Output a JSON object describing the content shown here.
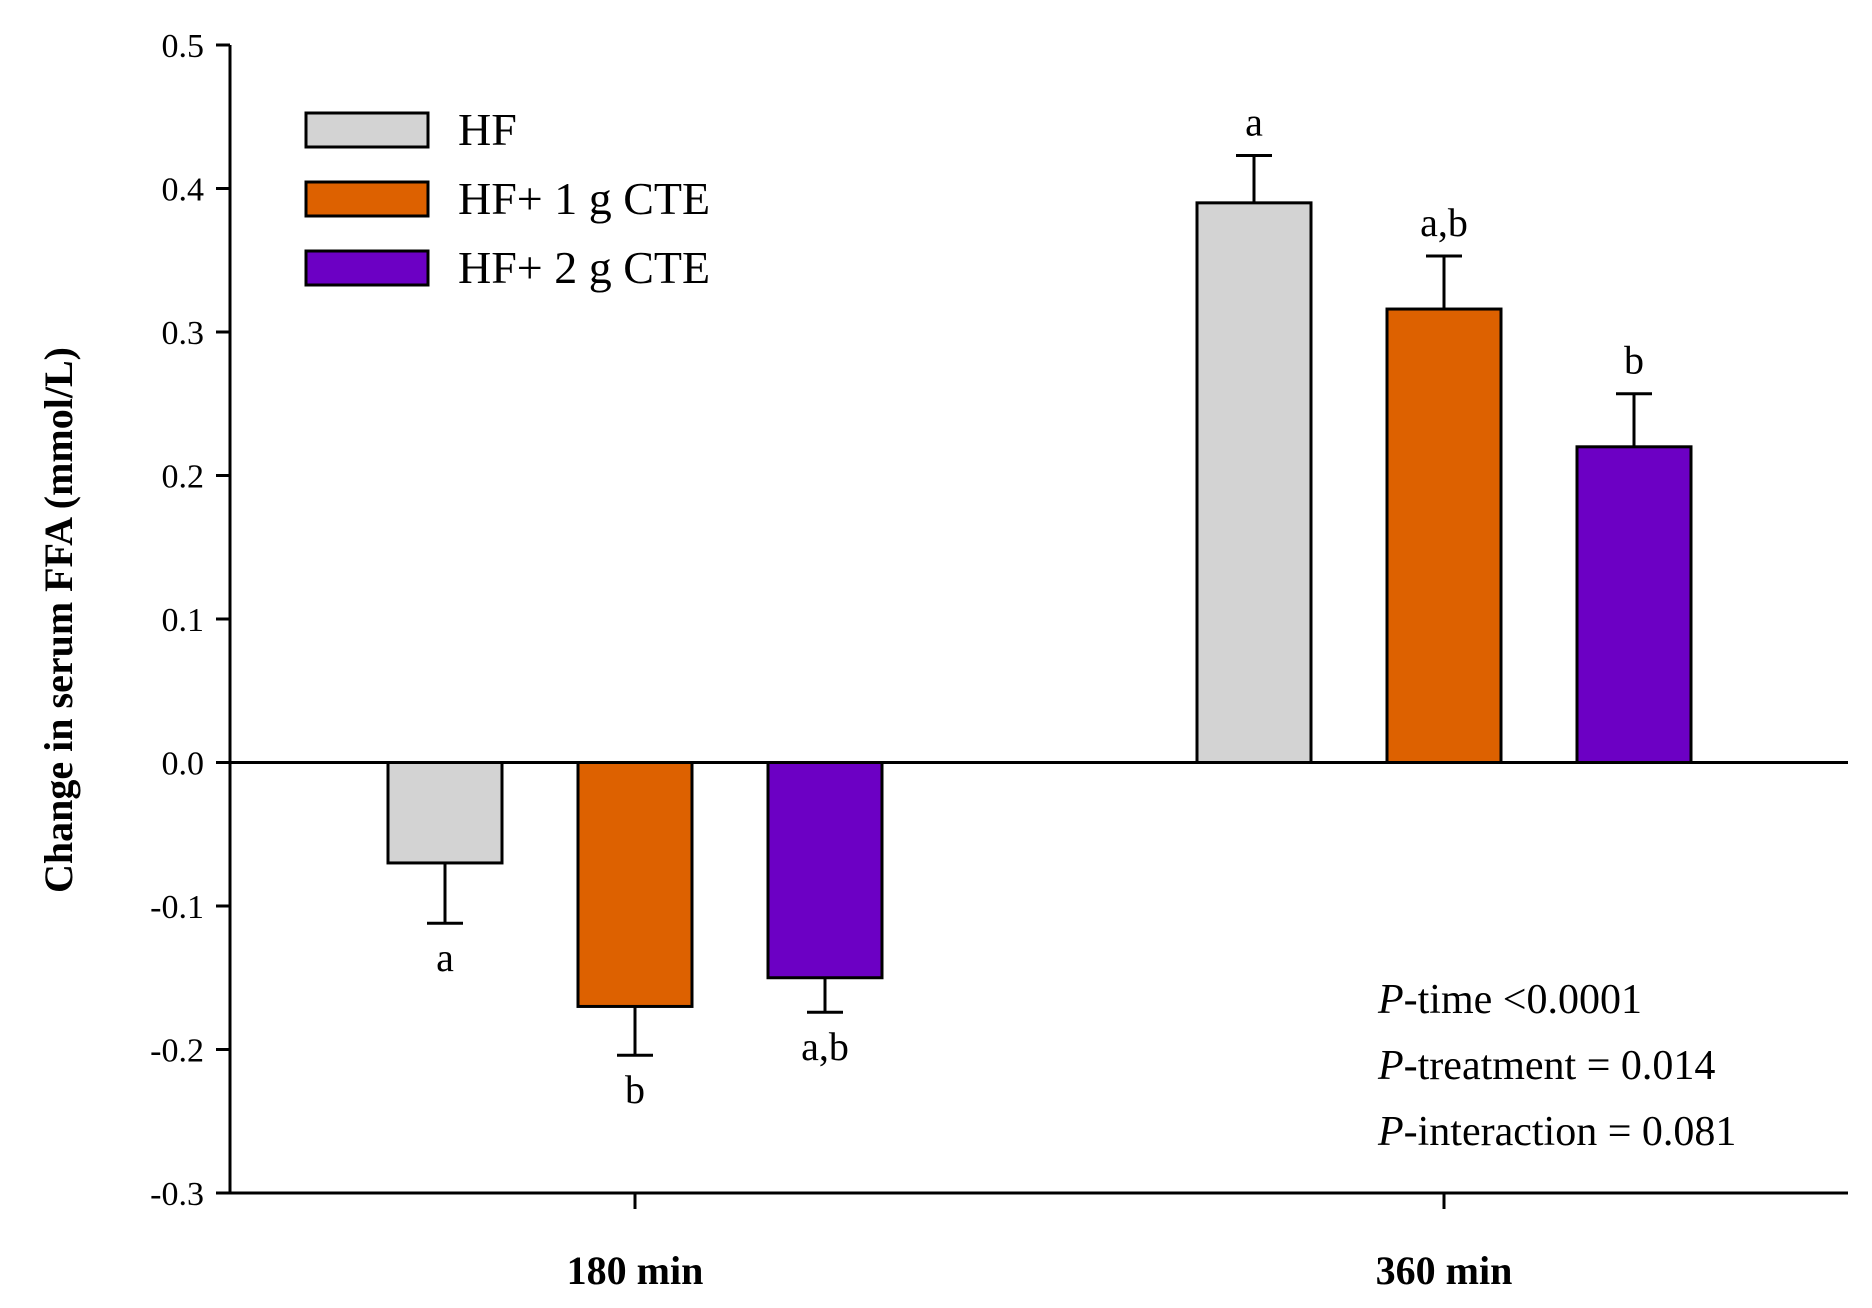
{
  "chart_data": {
    "type": "bar",
    "categories": [
      "180 min",
      "360 min"
    ],
    "ylabel": "Change in serum FFA (mmol/L)",
    "ylim": [
      -0.3,
      0.5
    ],
    "yticks": [
      -0.3,
      -0.2,
      -0.1,
      0.0,
      0.1,
      0.2,
      0.3,
      0.4,
      0.5
    ],
    "ytick_labels": [
      "-0.3",
      "-0.2",
      "-0.1",
      "0.0",
      "0.1",
      "0.2",
      "0.3",
      "0.4",
      "0.5"
    ],
    "grid": false,
    "legend_position": "top-left",
    "series": [
      {
        "name": "HF",
        "color": "#d3d3d3",
        "values": [
          -0.07,
          0.39
        ],
        "errors": [
          0.042,
          0.033
        ],
        "significance": [
          "a",
          "a"
        ]
      },
      {
        "name": "HF+ 1 g CTE",
        "color": "#dd6100",
        "values": [
          -0.17,
          0.316
        ],
        "errors": [
          0.034,
          0.037
        ],
        "significance": [
          "b",
          "a,b"
        ]
      },
      {
        "name": "HF+ 2 g CTE",
        "color": "#6c00c4",
        "values": [
          -0.15,
          0.22
        ],
        "errors": [
          0.024,
          0.037
        ],
        "significance": [
          "a,b",
          "b"
        ]
      }
    ],
    "annotations": [
      {
        "prefix": "P",
        "text": "-time <0.0001"
      },
      {
        "prefix": "P",
        "text": "-treatment = 0.014"
      },
      {
        "prefix": "P",
        "text": "-interaction = 0.081"
      }
    ]
  }
}
